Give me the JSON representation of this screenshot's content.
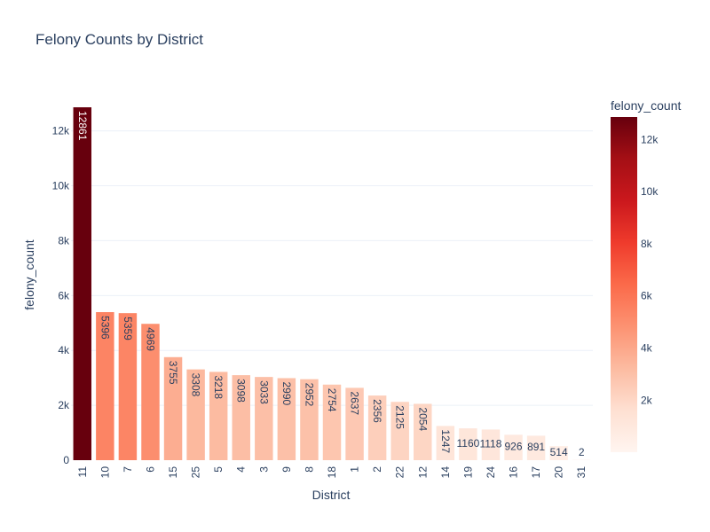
{
  "chart_data": {
    "type": "bar",
    "title": "Felony Counts by District",
    "xlabel": "District",
    "ylabel": "felony_count",
    "categories": [
      "11",
      "10",
      "7",
      "6",
      "15",
      "25",
      "5",
      "4",
      "3",
      "9",
      "8",
      "18",
      "1",
      "2",
      "22",
      "12",
      "14",
      "19",
      "24",
      "16",
      "17",
      "20",
      "31"
    ],
    "values": [
      12861,
      5396,
      5359,
      4969,
      3755,
      3308,
      3218,
      3098,
      3033,
      2990,
      2952,
      2754,
      2637,
      2356,
      2125,
      2054,
      1247,
      1160,
      1118,
      926,
      891,
      514,
      2
    ],
    "ylim": [
      0,
      12861
    ],
    "yticks": [
      0,
      2000,
      4000,
      6000,
      8000,
      10000,
      12000
    ],
    "ytick_labels": [
      "0",
      "2k",
      "4k",
      "6k",
      "8k",
      "10k",
      "12k"
    ],
    "grid": true,
    "colorbar": {
      "title": "felony_count",
      "colorscale": "Reds",
      "cmin": 2,
      "cmax": 12861,
      "ticks": [
        2000,
        4000,
        6000,
        8000,
        10000,
        12000
      ],
      "tick_labels": [
        "2k",
        "4k",
        "6k",
        "8k",
        "10k",
        "12k"
      ]
    },
    "colors": {
      "grid": "#ebf0f8",
      "text": "#2a3f5f",
      "scale_low": "#fff5f0",
      "scale_high": "#67000d"
    }
  }
}
